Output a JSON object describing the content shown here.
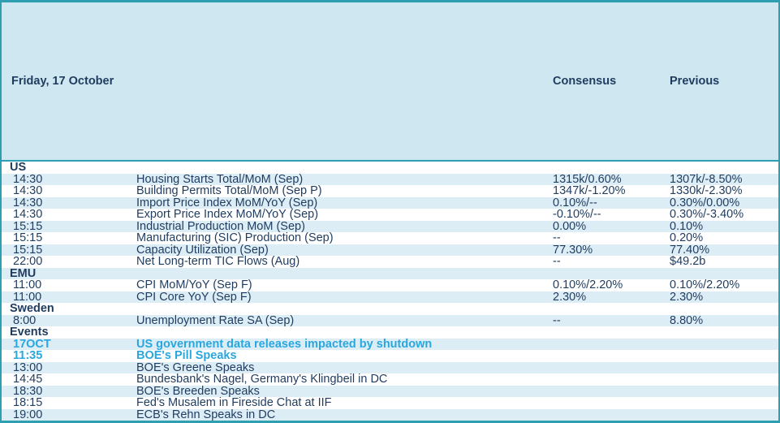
{
  "colors": {
    "border_teal": "#2e9fb0",
    "header_bg": "#cfe7f0",
    "stripe_bg": "#dcedf6",
    "text_navy": "#1f3c5f",
    "highlight_cyan": "#29a7de"
  },
  "table": {
    "header": {
      "date": "Friday, 17 October",
      "consensus": "Consensus",
      "previous": "Previous"
    },
    "rows": [
      {
        "type": "section",
        "label": "US"
      },
      {
        "type": "data",
        "time": "14:30",
        "event": "Housing Starts Total/MoM (Sep)",
        "consensus": "1315k/0.60%",
        "previous": "1307k/-8.50%"
      },
      {
        "type": "data",
        "time": "14:30",
        "event": "Building Permits Total/MoM (Sep P)",
        "consensus": "1347k/-1.20%",
        "previous": "1330k/-2.30%"
      },
      {
        "type": "data",
        "time": "14:30",
        "event": "Import Price Index MoM/YoY (Sep)",
        "consensus": "0.10%/--",
        "previous": "0.30%/0.00%"
      },
      {
        "type": "data",
        "time": "14:30",
        "event": "Export Price Index MoM/YoY (Sep)",
        "consensus": "-0.10%/--",
        "previous": "0.30%/-3.40%"
      },
      {
        "type": "data",
        "time": "15:15",
        "event": "Industrial Production MoM (Sep)",
        "consensus": "0.00%",
        "previous": "0.10%"
      },
      {
        "type": "data",
        "time": "15:15",
        "event": "Manufacturing (SIC) Production (Sep)",
        "consensus": "--",
        "previous": "0.20%"
      },
      {
        "type": "data",
        "time": "15:15",
        "event": "Capacity Utilization (Sep)",
        "consensus": "77.30%",
        "previous": "77.40%"
      },
      {
        "type": "data",
        "time": "22:00",
        "event": "Net Long-term TIC Flows (Aug)",
        "consensus": "--",
        "previous": "$49.2b"
      },
      {
        "type": "section",
        "label": "EMU"
      },
      {
        "type": "data",
        "time": "11:00",
        "event": "CPI MoM/YoY (Sep F)",
        "consensus": "0.10%/2.20%",
        "previous": "0.10%/2.20%"
      },
      {
        "type": "data",
        "time": "11:00",
        "event": "CPI Core YoY (Sep F)",
        "consensus": "2.30%",
        "previous": "2.30%"
      },
      {
        "type": "section",
        "label": "Sweden"
      },
      {
        "type": "data",
        "time": "8:00",
        "event": "Unemployment Rate SA (Sep)",
        "consensus": "--",
        "previous": "8.80%"
      },
      {
        "type": "section",
        "label": "Events"
      },
      {
        "type": "data",
        "time": "17OCT",
        "event": "US government data releases impacted by shutdown",
        "consensus": "",
        "previous": "",
        "highlight": true
      },
      {
        "type": "data",
        "time": "11:35",
        "event": "BOE's Pill Speaks",
        "consensus": "",
        "previous": "",
        "highlight": true
      },
      {
        "type": "data",
        "time": "13:00",
        "event": "BOE's Greene Speaks",
        "consensus": "",
        "previous": ""
      },
      {
        "type": "data",
        "time": "14:45",
        "event": "Bundesbank's Nagel, Germany's Klingbeil in DC",
        "consensus": "",
        "previous": ""
      },
      {
        "type": "data",
        "time": "18:30",
        "event": "BOE's Breeden Speaks",
        "consensus": "",
        "previous": ""
      },
      {
        "type": "data",
        "time": "18:15",
        "event": "Fed's Musalem in Fireside Chat at IIF",
        "consensus": "",
        "previous": ""
      },
      {
        "type": "data",
        "time": "19:00",
        "event": "ECB's Rehn Speaks in DC",
        "consensus": "",
        "previous": ""
      }
    ]
  }
}
